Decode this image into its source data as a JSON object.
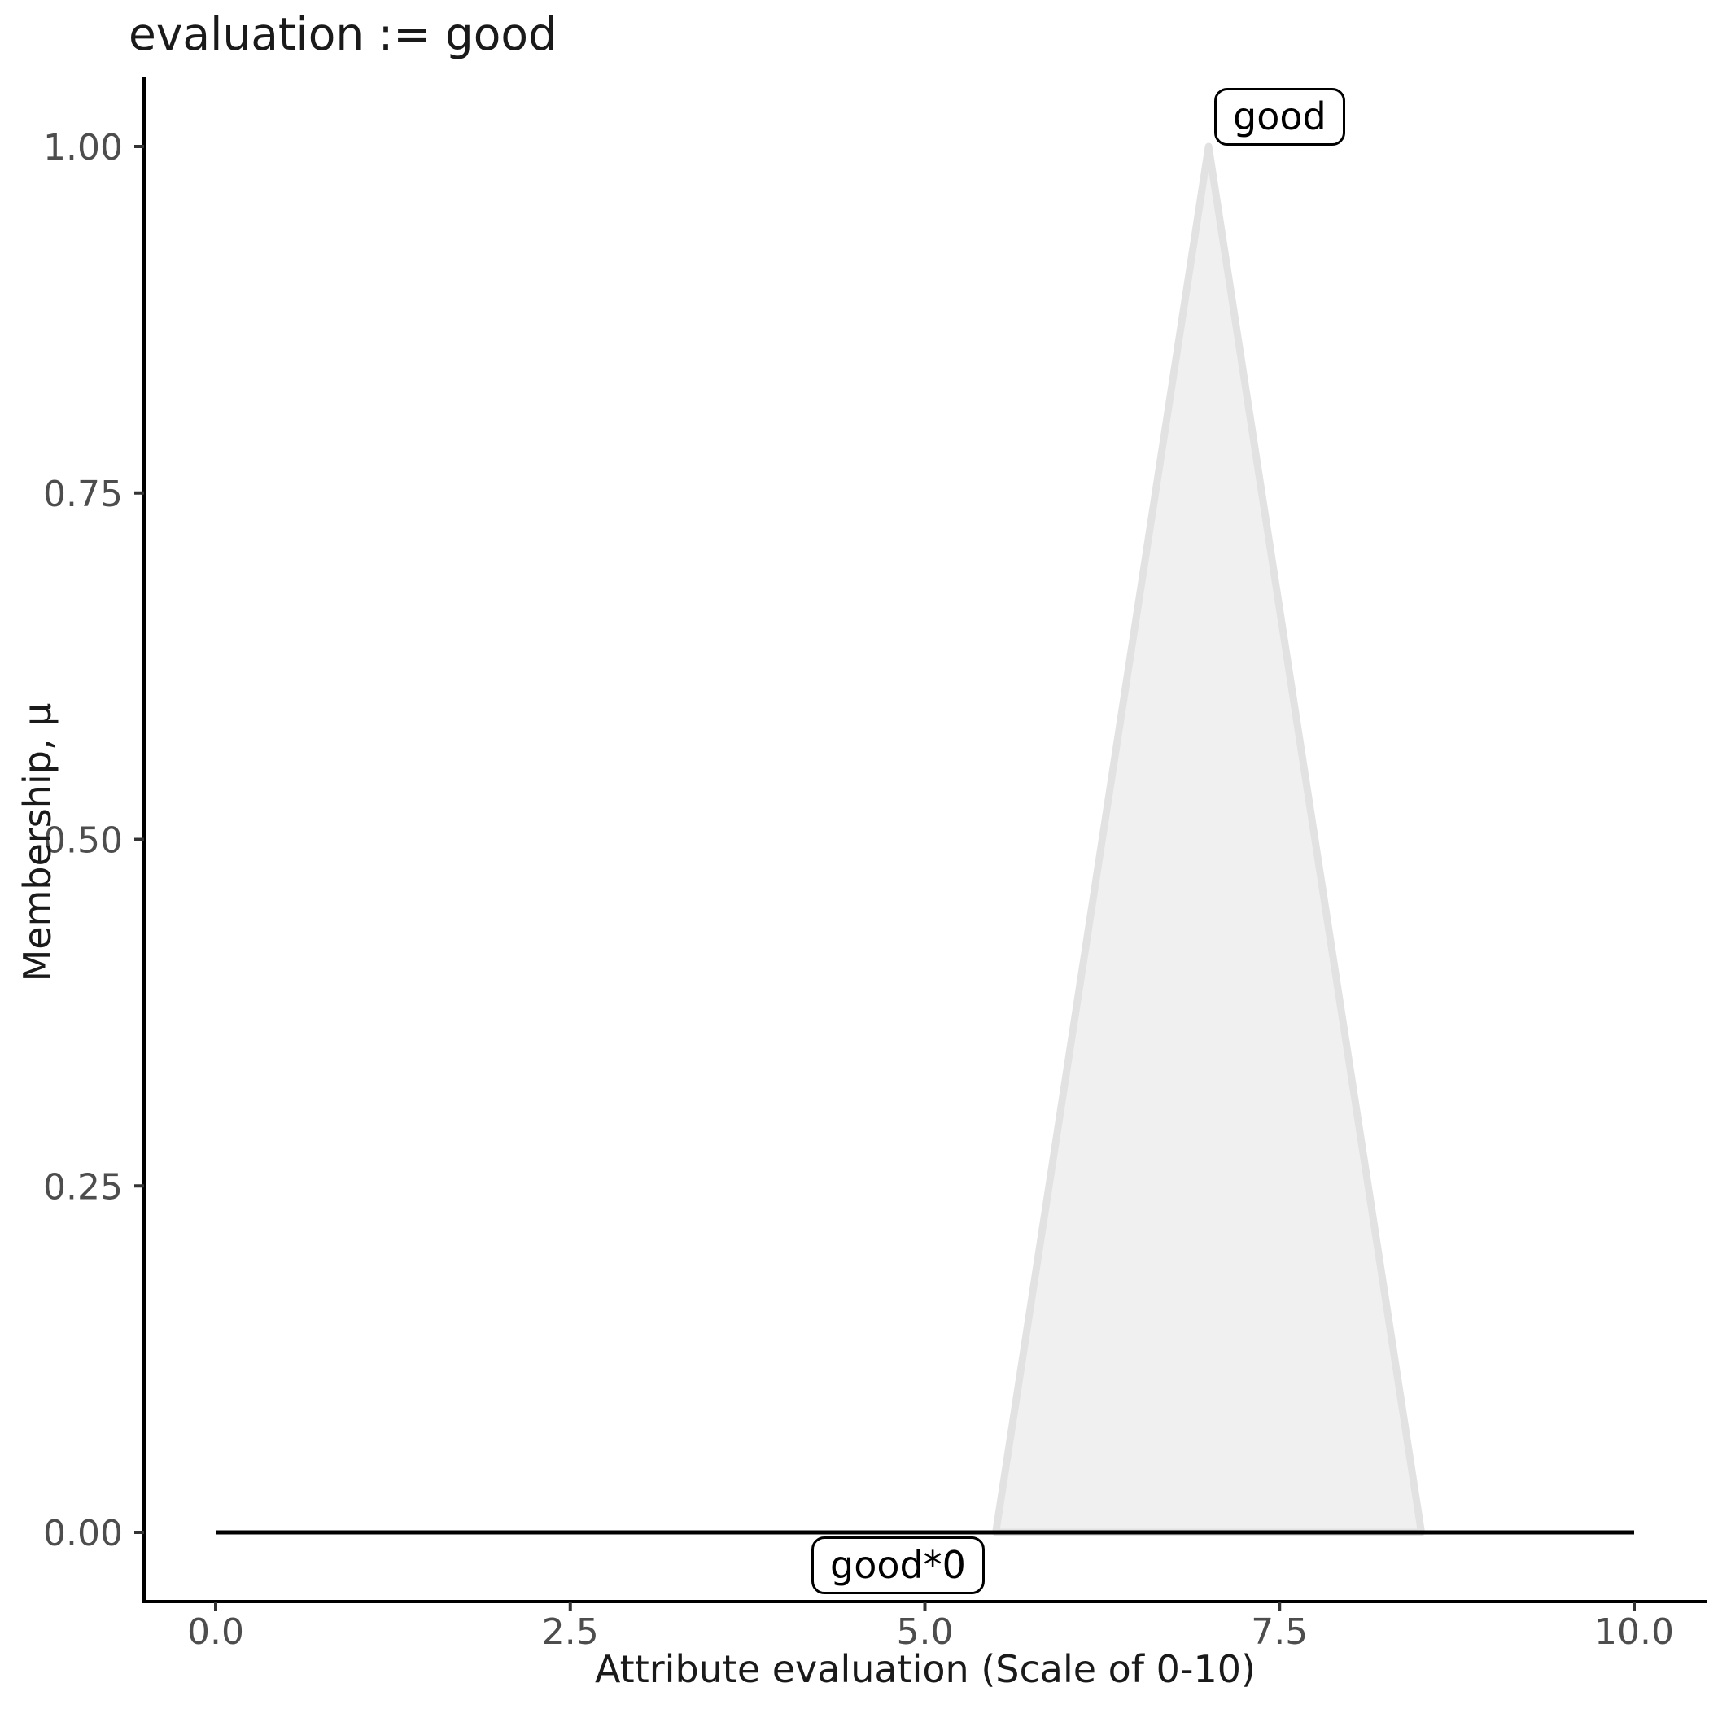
{
  "chart_data": {
    "type": "area",
    "title": "evaluation := good",
    "xlabel": "Attribute evaluation (Scale of 0-10)",
    "ylabel": "Membership, μ",
    "xlim": [
      0,
      10
    ],
    "ylim": [
      0,
      1
    ],
    "grid": false,
    "legend": "none",
    "x_ticks": {
      "values": [
        0,
        2.5,
        5,
        7.5,
        10
      ],
      "labels": [
        "0.0",
        "2.5",
        "5.0",
        "7.5",
        "10.0"
      ]
    },
    "y_ticks": {
      "values": [
        1,
        0.75,
        0.5,
        0.25,
        0
      ],
      "labels": [
        "1.00",
        "0.75",
        "0.50",
        "0.25",
        "0.00"
      ]
    },
    "series": [
      {
        "name": "good",
        "shape": "polygon",
        "description": "triangular membership function",
        "points": [
          [
            5.5,
            0
          ],
          [
            7,
            1
          ],
          [
            8.5,
            0
          ]
        ],
        "fill": "#F0F0F0",
        "stroke": "#E2E2E2",
        "stroke_width": 9,
        "label": "good"
      },
      {
        "name": "good-times-zero",
        "shape": "line",
        "description": "constant zero membership line",
        "points": [
          [
            0,
            0
          ],
          [
            10,
            0
          ]
        ],
        "stroke": "#000000",
        "stroke_width": 5,
        "label": "good*0"
      }
    ]
  },
  "annotations": {
    "good": "good",
    "good_times_zero": "good*0"
  },
  "colors": {
    "axis_line": "#000000",
    "tick_mark": "#333333",
    "tick_label": "#4D4D4D",
    "title_text": "#1A1A1A",
    "background": "#FFFFFF",
    "triangle_fill": "#F0F0F0",
    "triangle_stroke": "#E2E2E2"
  }
}
